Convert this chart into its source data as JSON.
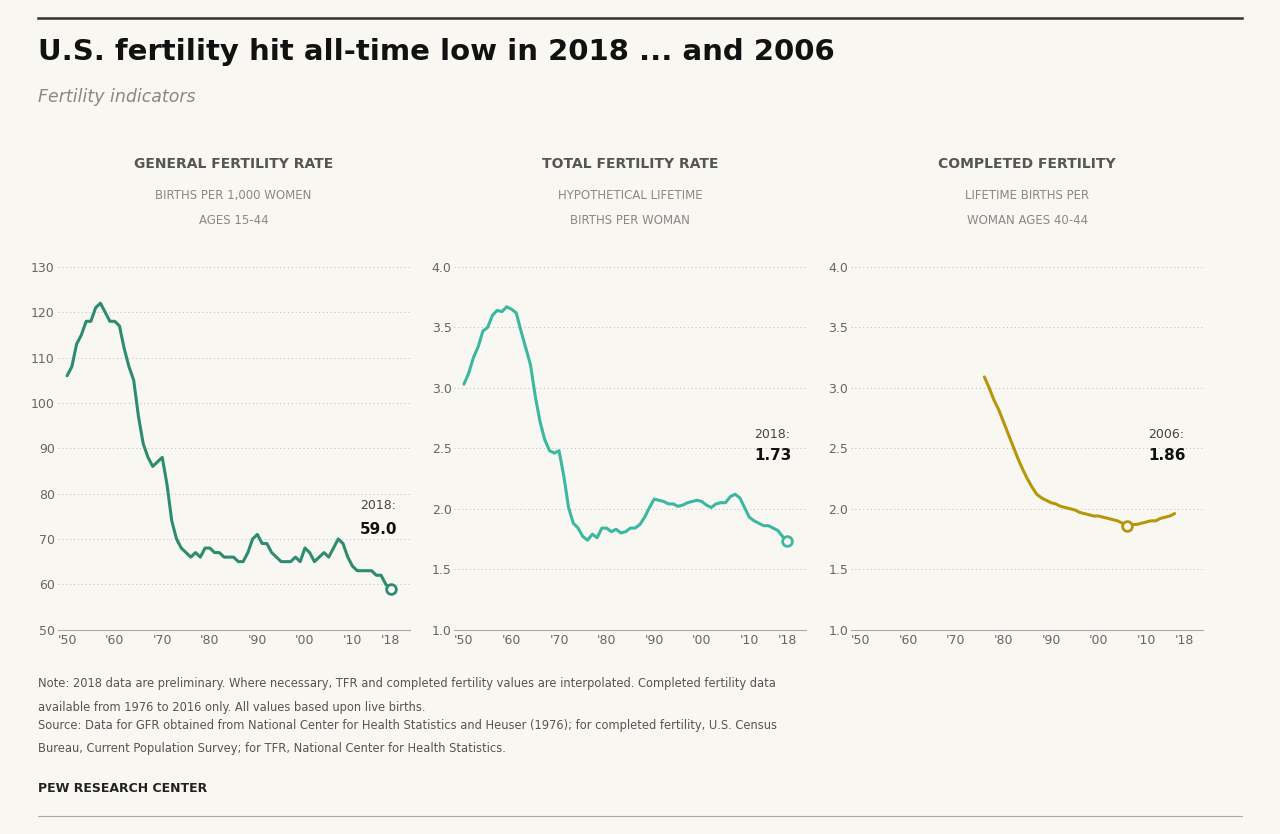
{
  "title": "U.S. fertility hit all-time low in 2018 ... and 2006",
  "subtitle": "Fertility indicators",
  "note1": "Note: 2018 data are preliminary. Where necessary, TFR and completed fertility values are interpolated. Completed fertility data",
  "note2": "available from 1976 to 2016 only. All values based upon live births.",
  "source1": "Source: Data for GFR obtained from National Center for Health Statistics and Heuser (1976); for completed fertility, U.S. Census",
  "source2": "Bureau, Current Population Survey; for TFR, National Center for Health Statistics.",
  "credit": "PEW RESEARCH CENTER",
  "panel1_title": "GENERAL FERTILITY RATE",
  "panel1_subtitle1": "BIRTHS PER 1,000 WOMEN",
  "panel1_subtitle2": "AGES 15-44",
  "panel1_color": "#2d8b72",
  "panel1_ylim": [
    50,
    130
  ],
  "panel1_yticks": [
    50,
    60,
    70,
    80,
    90,
    100,
    110,
    120,
    130
  ],
  "panel1_years": [
    1950,
    1951,
    1952,
    1953,
    1954,
    1955,
    1956,
    1957,
    1958,
    1959,
    1960,
    1961,
    1962,
    1963,
    1964,
    1965,
    1966,
    1967,
    1968,
    1969,
    1970,
    1971,
    1972,
    1973,
    1974,
    1975,
    1976,
    1977,
    1978,
    1979,
    1980,
    1981,
    1982,
    1983,
    1984,
    1985,
    1986,
    1987,
    1988,
    1989,
    1990,
    1991,
    1992,
    1993,
    1994,
    1995,
    1996,
    1997,
    1998,
    1999,
    2000,
    2001,
    2002,
    2003,
    2004,
    2005,
    2006,
    2007,
    2008,
    2009,
    2010,
    2011,
    2012,
    2013,
    2014,
    2015,
    2016,
    2017,
    2018
  ],
  "panel1_values": [
    106,
    108,
    113,
    115,
    118,
    118,
    121,
    122,
    120,
    118,
    118,
    117,
    112,
    108,
    105,
    97,
    91,
    88,
    86,
    87,
    88,
    82,
    74,
    70,
    68,
    67,
    66,
    67,
    66,
    68,
    68,
    67,
    67,
    66,
    66,
    66,
    65,
    65,
    67,
    70,
    71,
    69,
    69,
    67,
    66,
    65,
    65,
    65,
    66,
    65,
    68,
    67,
    65,
    66,
    67,
    66,
    68,
    70,
    69,
    66,
    64,
    63,
    63,
    63,
    63,
    62,
    62,
    60,
    59
  ],
  "panel2_title": "TOTAL FERTILITY RATE",
  "panel2_subtitle1": "HYPOTHETICAL LIFETIME",
  "panel2_subtitle2": "BIRTHS PER WOMAN",
  "panel2_color": "#3cb8a0",
  "panel2_ylim": [
    1.0,
    4.0
  ],
  "panel2_yticks": [
    1.0,
    1.5,
    2.0,
    2.5,
    3.0,
    3.5,
    4.0
  ],
  "panel2_years": [
    1950,
    1951,
    1952,
    1953,
    1954,
    1955,
    1956,
    1957,
    1958,
    1959,
    1960,
    1961,
    1962,
    1963,
    1964,
    1965,
    1966,
    1967,
    1968,
    1969,
    1970,
    1971,
    1972,
    1973,
    1974,
    1975,
    1976,
    1977,
    1978,
    1979,
    1980,
    1981,
    1982,
    1983,
    1984,
    1985,
    1986,
    1987,
    1988,
    1989,
    1990,
    1991,
    1992,
    1993,
    1994,
    1995,
    1996,
    1997,
    1998,
    1999,
    2000,
    2001,
    2002,
    2003,
    2004,
    2005,
    2006,
    2007,
    2008,
    2009,
    2010,
    2011,
    2012,
    2013,
    2014,
    2015,
    2016,
    2017,
    2018
  ],
  "panel2_values": [
    3.03,
    3.12,
    3.25,
    3.34,
    3.47,
    3.5,
    3.6,
    3.64,
    3.63,
    3.67,
    3.65,
    3.62,
    3.47,
    3.33,
    3.19,
    2.93,
    2.72,
    2.57,
    2.48,
    2.46,
    2.48,
    2.27,
    2.01,
    1.88,
    1.84,
    1.77,
    1.74,
    1.79,
    1.76,
    1.84,
    1.84,
    1.81,
    1.83,
    1.8,
    1.81,
    1.84,
    1.84,
    1.87,
    1.93,
    2.01,
    2.08,
    2.07,
    2.06,
    2.04,
    2.04,
    2.02,
    2.03,
    2.05,
    2.06,
    2.07,
    2.06,
    2.03,
    2.01,
    2.04,
    2.05,
    2.05,
    2.1,
    2.12,
    2.09,
    2.01,
    1.93,
    1.9,
    1.88,
    1.86,
    1.86,
    1.84,
    1.82,
    1.77,
    1.73
  ],
  "panel3_title": "COMPLETED FERTILITY",
  "panel3_subtitle1": "LIFETIME BIRTHS PER",
  "panel3_subtitle2": "WOMAN AGES 40-44",
  "panel3_color": "#b8960c",
  "panel3_ylim": [
    1.0,
    4.0
  ],
  "panel3_yticks": [
    1.0,
    1.5,
    2.0,
    2.5,
    3.0,
    3.5,
    4.0
  ],
  "panel3_years": [
    1976,
    1977,
    1978,
    1979,
    1980,
    1981,
    1982,
    1983,
    1984,
    1985,
    1986,
    1987,
    1988,
    1989,
    1990,
    1991,
    1992,
    1993,
    1994,
    1995,
    1996,
    1997,
    1998,
    1999,
    2000,
    2001,
    2002,
    2003,
    2004,
    2005,
    2006,
    2007,
    2008,
    2009,
    2010,
    2011,
    2012,
    2013,
    2014,
    2015,
    2016
  ],
  "panel3_values": [
    3.09,
    3.0,
    2.9,
    2.82,
    2.72,
    2.62,
    2.52,
    2.42,
    2.33,
    2.25,
    2.18,
    2.12,
    2.09,
    2.07,
    2.05,
    2.04,
    2.02,
    2.01,
    2.0,
    1.99,
    1.97,
    1.96,
    1.95,
    1.94,
    1.94,
    1.93,
    1.92,
    1.91,
    1.9,
    1.88,
    1.86,
    1.87,
    1.87,
    1.88,
    1.89,
    1.9,
    1.9,
    1.92,
    1.93,
    1.94,
    1.96
  ],
  "xtick_labels": [
    "'50",
    "'60",
    "'70",
    "'80",
    "'90",
    "'00",
    "'10",
    "'18"
  ],
  "xtick_values": [
    1950,
    1960,
    1970,
    1980,
    1990,
    2000,
    2010,
    2018
  ],
  "background_color": "#f9f7f2",
  "dotted_color": "#bbbbbb",
  "spine_color": "#aaaaaa",
  "tick_color": "#666666",
  "annot_year_color": "#444444",
  "annot_val_color": "#111111"
}
